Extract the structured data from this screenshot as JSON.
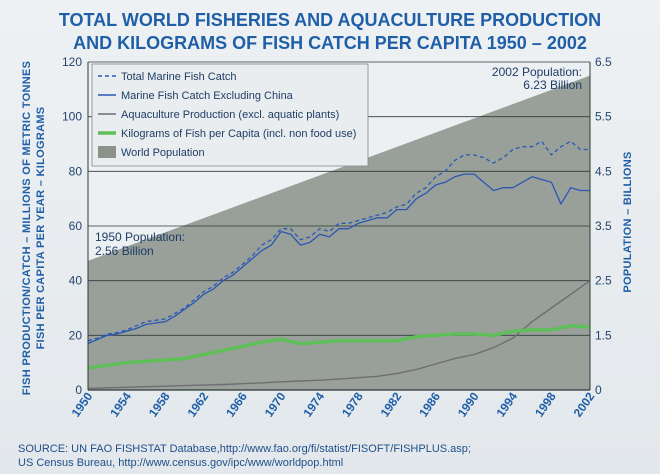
{
  "colors": {
    "title": "#1f5fa8",
    "population_fill": "#8a928a",
    "marine_total": "#2b57b5",
    "marine_ex_china": "#2b57b5",
    "aquaculture": "#6d6d72",
    "per_capita": "#5fbf58",
    "grid": "#2e3a3a"
  },
  "chart_data": {
    "type": "line",
    "title_line1": "TOTAL WORLD FISHERIES AND AQUACULTURE PRODUCTION",
    "title_line2": "AND KILOGRAMS OF FISH CATCH PER CAPITA 1950 – 2002",
    "ylabel_line1": "FISH PRODUCTION/CATCH – MILLIONS OF METRIC TONNES",
    "ylabel_line2": "FISH PER CAPITA PER YEAR – KILOGRAMS",
    "y2label": "POPULATION – BILLIONS",
    "xlim": [
      1950,
      2002
    ],
    "ylim": [
      0,
      120
    ],
    "y2lim": [
      0,
      6.5
    ],
    "x_ticks": [
      "1950",
      "1954",
      "1958",
      "1962",
      "1966",
      "1970",
      "1974",
      "1978",
      "1982",
      "1986",
      "1990",
      "1994",
      "1998",
      "2002"
    ],
    "y_ticks": [
      "0",
      "20",
      "40",
      "60",
      "80",
      "100",
      "120"
    ],
    "y2_ticks": [
      "0",
      "1.5",
      "2.5",
      "3.5",
      "4.5",
      "5.5",
      "6.5"
    ],
    "legend": [
      {
        "label": "Total Marine Fish Catch",
        "style": "dashed"
      },
      {
        "label": "Marine Fish Catch Excluding China",
        "style": "solid"
      },
      {
        "label": "Aquaculture Production (excl. aquatic plants)",
        "style": "solid"
      },
      {
        "label": "Kilograms of Fish per Capita (incl. non food use)",
        "style": "thick"
      },
      {
        "label": "World Population",
        "style": "area"
      }
    ],
    "annotations": [
      {
        "lines": [
          "1950 Population:",
          "2.56 Billion"
        ]
      },
      {
        "lines": [
          "2002 Population:",
          "6.23 Billion"
        ]
      }
    ],
    "population": {
      "name": "World Population",
      "x": [
        1950,
        2002
      ],
      "values": [
        2.56,
        6.23
      ]
    },
    "series": [
      {
        "name": "Total Marine Fish Catch",
        "x": [
          1950,
          1951,
          1952,
          1953,
          1954,
          1955,
          1956,
          1957,
          1958,
          1959,
          1960,
          1961,
          1962,
          1963,
          1964,
          1965,
          1966,
          1967,
          1968,
          1969,
          1970,
          1971,
          1972,
          1973,
          1974,
          1975,
          1976,
          1977,
          1978,
          1979,
          1980,
          1981,
          1982,
          1983,
          1984,
          1985,
          1986,
          1987,
          1988,
          1989,
          1990,
          1991,
          1992,
          1993,
          1994,
          1995,
          1996,
          1997,
          1998,
          1999,
          2000,
          2001,
          2002
        ],
        "values": [
          18,
          19,
          20.5,
          21,
          22,
          23.5,
          25,
          25.5,
          26,
          28,
          30,
          33,
          36,
          38,
          41,
          43,
          46,
          49,
          53,
          55,
          59,
          59,
          55,
          56,
          59,
          58,
          61,
          61,
          62,
          63,
          64,
          65,
          67,
          68,
          72,
          74,
          78,
          80,
          84,
          86,
          86,
          85,
          83,
          85,
          88,
          89,
          89,
          91,
          86,
          89,
          91,
          88,
          88
        ]
      },
      {
        "name": "Marine Fish Catch Excluding China",
        "x": [
          1950,
          1951,
          1952,
          1953,
          1954,
          1955,
          1956,
          1957,
          1958,
          1959,
          1960,
          1961,
          1962,
          1963,
          1964,
          1965,
          1966,
          1967,
          1968,
          1969,
          1970,
          1971,
          1972,
          1973,
          1974,
          1975,
          1976,
          1977,
          1978,
          1979,
          1980,
          1981,
          1982,
          1983,
          1984,
          1985,
          1986,
          1987,
          1988,
          1989,
          1990,
          1991,
          1992,
          1993,
          1994,
          1995,
          1996,
          1997,
          1998,
          1999,
          2000,
          2001,
          2002
        ],
        "values": [
          17,
          18.5,
          20,
          20.5,
          21.5,
          22.5,
          24,
          24.5,
          25,
          27,
          29.5,
          32,
          35,
          37,
          40,
          42,
          45,
          48,
          51,
          53,
          58,
          57,
          53,
          54,
          57,
          56,
          59,
          59,
          61,
          62,
          63,
          63,
          66,
          66,
          70,
          72,
          75,
          76,
          78,
          79,
          79,
          76,
          73,
          74,
          74,
          76,
          78,
          77,
          76,
          68,
          74,
          73,
          73
        ]
      },
      {
        "name": "Aquaculture Production (excl. aquatic plants)",
        "x": [
          1950,
          1952,
          1954,
          1956,
          1958,
          1960,
          1962,
          1964,
          1966,
          1968,
          1970,
          1972,
          1974,
          1976,
          1978,
          1980,
          1982,
          1984,
          1986,
          1988,
          1990,
          1992,
          1994,
          1996,
          1998,
          2000,
          2002
        ],
        "values": [
          0.6,
          0.8,
          1.0,
          1.2,
          1.4,
          1.6,
          1.8,
          2.0,
          2.3,
          2.6,
          3.0,
          3.3,
          3.6,
          4.0,
          4.5,
          5.0,
          6.0,
          7.5,
          9.5,
          11.5,
          13,
          15.5,
          19,
          25,
          30,
          35,
          40
        ]
      },
      {
        "name": "Kilograms of Fish per Capita (incl. non food use)",
        "x": [
          1950,
          1952,
          1954,
          1956,
          1958,
          1960,
          1962,
          1964,
          1966,
          1968,
          1970,
          1972,
          1974,
          1976,
          1978,
          1980,
          1982,
          1984,
          1986,
          1988,
          1990,
          1992,
          1994,
          1996,
          1998,
          2000,
          2002
        ],
        "values": [
          8,
          9,
          10,
          10.5,
          11,
          11.5,
          13,
          14.5,
          16,
          17.5,
          18.5,
          17,
          17.5,
          18,
          18,
          18,
          18,
          19.5,
          20,
          20.5,
          20.5,
          20,
          21.5,
          22,
          22,
          23.5,
          23
        ]
      }
    ]
  },
  "source_line1": "SOURCE: UN FAO FISHSTAT Database,http://www.fao.org/fi/statist/FISOFT/FISHPLUS.asp;",
  "source_line2": "US Census Bureau, http://www.census.gov/ipc/www/worldpop.html"
}
